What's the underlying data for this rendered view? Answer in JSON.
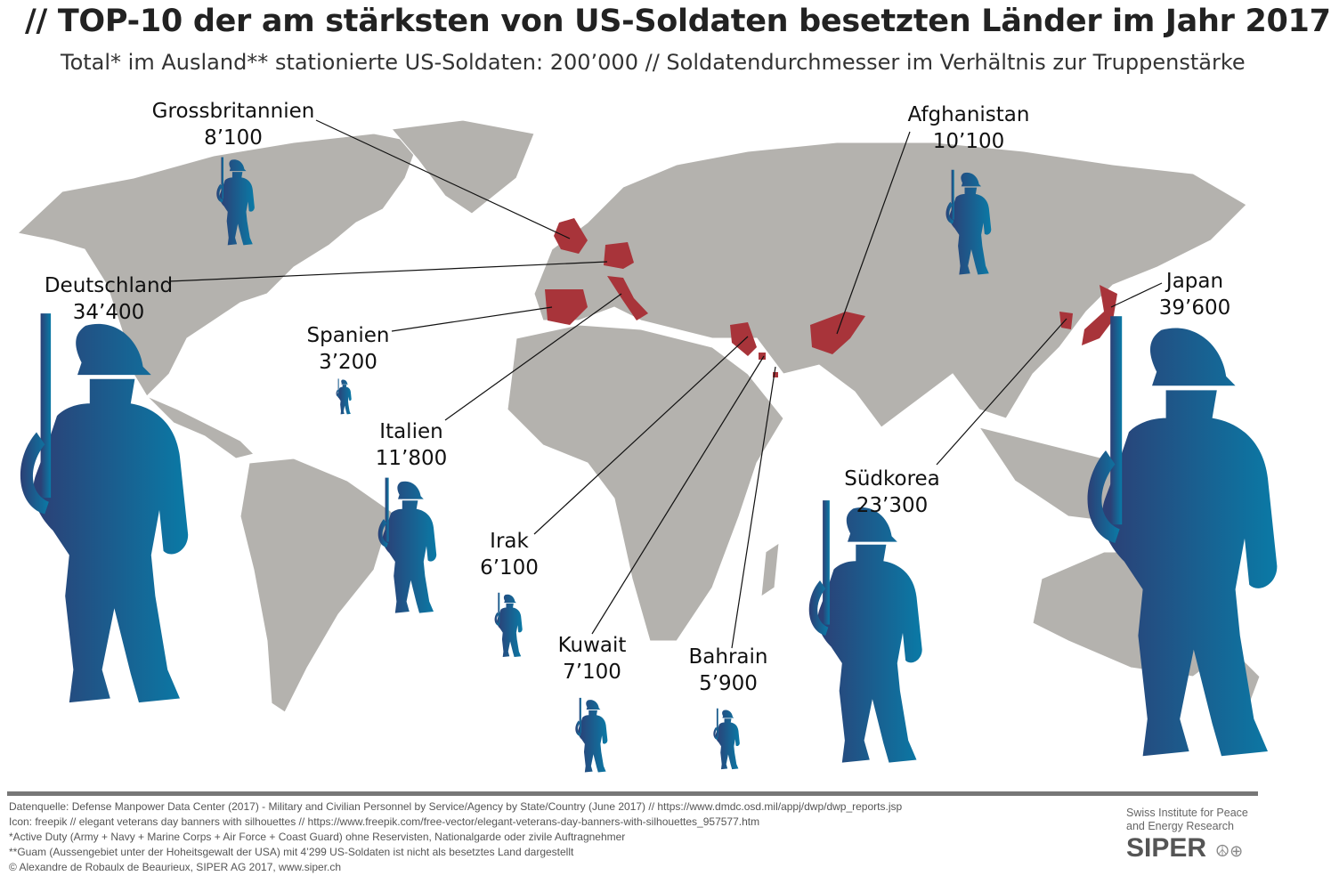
{
  "title": "// TOP-10 der am stärksten von US-Soldaten besetzten Länder im Jahr 2017",
  "subtitle": "Total* im Ausland** stationierte US-Soldaten: 200’000 // Soldatendurchmesser im Verhältnis zur Truppenstärke",
  "colors": {
    "land": "#b4b2ae",
    "highlight": "#a8343a",
    "soldier_start": "#2c3f75",
    "soldier_end": "#0a7aa6",
    "borders": "#ffffff"
  },
  "icons": {
    "soldier": "soldier-silhouette-icon"
  },
  "countries": [
    {
      "name": "Grossbritannien",
      "troops": "8’100",
      "value": 8100
    },
    {
      "name": "Deutschland",
      "troops": "34’400",
      "value": 34400
    },
    {
      "name": "Spanien",
      "troops": "3’200",
      "value": 3200
    },
    {
      "name": "Italien",
      "troops": "11’800",
      "value": 11800
    },
    {
      "name": "Irak",
      "troops": "6’100",
      "value": 6100
    },
    {
      "name": "Kuwait",
      "troops": "7’100",
      "value": 7100
    },
    {
      "name": "Bahrain",
      "troops": "5’900",
      "value": 5900
    },
    {
      "name": "Afghanistan",
      "troops": "10’100",
      "value": 10100
    },
    {
      "name": "Südkorea",
      "troops": "23’300",
      "value": 23300
    },
    {
      "name": "Japan",
      "troops": "39’600",
      "value": 39600
    }
  ],
  "footer": [
    "Datenquelle: Defense Manpower Data Center (2017) - Military and Civilian Personnel by Service/Agency by State/Country (June 2017) // https://www.dmdc.osd.mil/appj/dwp/dwp_reports.jsp",
    "Icon: freepik // elegant veterans day banners with silhouettes // https://www.freepik.com/free-vector/elegant-veterans-day-banners-with-silhouettes_957577.htm",
    "*Active Duty (Army + Navy + Marine Corps + Air Force + Coast Guard) ohne Reservisten, Nationalgarde oder zivile Auftragnehmer",
    "**Guam (Aussengebiet unter der Hoheitsgewalt der USA) mit 4’299 US-Soldaten ist nicht als besetztes Land dargestellt",
    "© Alexandre de Robaulx de Beaurieux, SIPER AG 2017, www.siper.ch"
  ],
  "logo": {
    "line1": "Swiss Institute for Peace",
    "line2": "and Energy Research",
    "brand": "SIPER",
    "symbols": "☮⊕"
  }
}
